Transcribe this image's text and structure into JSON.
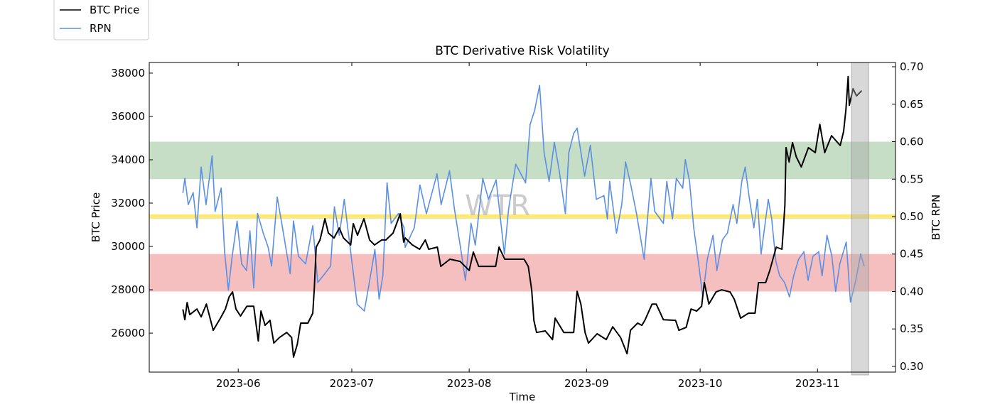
{
  "chart_data": {
    "type": "line",
    "title": "BTC Derivative Risk Volatility",
    "xlabel": "Time",
    "ylabel_left": "BTC Price",
    "ylabel_right": "BTC RPN",
    "x_units": "days since 2023-05-01",
    "xlim": [
      7.5,
      204.6
    ],
    "ylim_left": [
      24200,
      38490
    ],
    "ylim_right": [
      0.2924,
      0.7057
    ],
    "x_ticks": [
      {
        "value": 31,
        "label": "2023-06"
      },
      {
        "value": 61,
        "label": "2023-07"
      },
      {
        "value": 92,
        "label": "2023-08"
      },
      {
        "value": 123,
        "label": "2023-09"
      },
      {
        "value": 153,
        "label": "2023-10"
      },
      {
        "value": 184,
        "label": "2023-11"
      }
    ],
    "y_ticks_left": [
      {
        "value": 26000,
        "label": "26000"
      },
      {
        "value": 28000,
        "label": "28000"
      },
      {
        "value": 30000,
        "label": "30000"
      },
      {
        "value": 32000,
        "label": "32000"
      },
      {
        "value": 34000,
        "label": "34000"
      },
      {
        "value": 36000,
        "label": "36000"
      },
      {
        "value": 38000,
        "label": "38000"
      }
    ],
    "y_ticks_right": [
      {
        "value": 0.3,
        "label": "0.30"
      },
      {
        "value": 0.35,
        "label": "0.35"
      },
      {
        "value": 0.4,
        "label": "0.40"
      },
      {
        "value": 0.45,
        "label": "0.45"
      },
      {
        "value": 0.5,
        "label": "0.50"
      },
      {
        "value": 0.55,
        "label": "0.55"
      },
      {
        "value": 0.6,
        "label": "0.60"
      },
      {
        "value": 0.65,
        "label": "0.65"
      },
      {
        "value": 0.7,
        "label": "0.70"
      }
    ],
    "bands": [
      {
        "name": "high-risk-band",
        "axis": "right",
        "from": 0.55,
        "to": 0.6,
        "color": "#c5dec5"
      },
      {
        "name": "neutral-line-band",
        "axis": "right",
        "from": 0.497,
        "to": 0.503,
        "color": "#fde97a"
      },
      {
        "name": "low-risk-band",
        "axis": "right",
        "from": 0.4,
        "to": 0.45,
        "color": "#f6bfbf"
      }
    ],
    "highlight_x_range": [
      193.0,
      197.5
    ],
    "watermark": "WTR",
    "legend": {
      "placement": "top-left outside",
      "entries": [
        "BTC Price",
        "RPN"
      ]
    },
    "series": [
      {
        "name": "BTC Price",
        "axis": "left",
        "color": "#000000",
        "x": [
          16.4,
          16.9,
          17.5,
          18.2,
          20.1,
          21.2,
          22.6,
          24.4,
          26.3,
          27.6,
          28.6,
          29.5,
          30.4,
          31.6,
          33.3,
          35.1,
          36.3,
          37.0,
          38.1,
          39.4,
          40.4,
          41.9,
          43.8,
          45.1,
          45.6,
          46.6,
          47.5,
          49.4,
          50.7,
          51.1,
          51.6,
          52.6,
          53.9,
          54.8,
          56.3,
          57.7,
          58.8,
          60.7,
          61.4,
          62.5,
          64.2,
          65.7,
          67.0,
          68.9,
          70.0,
          71.9,
          73.8,
          74.7,
          75.1,
          77.0,
          78.9,
          80.4,
          81.3,
          83.6,
          84.5,
          86.9,
          89.6,
          92.0,
          93.1,
          94.5,
          97.1,
          99.0,
          99.9,
          101.4,
          104.6,
          106.5,
          107.6,
          108.5,
          109.1,
          109.8,
          112.1,
          114.0,
          114.7,
          117.0,
          119.6,
          120.5,
          121.5,
          122.6,
          123.5,
          125.8,
          128.2,
          129.9,
          132.0,
          133.7,
          134.6,
          136.5,
          137.6,
          138.4,
          140.3,
          141.4,
          143.3,
          146.5,
          147.4,
          149.3,
          150.6,
          152.1,
          153.4,
          154.1,
          155.3,
          157.2,
          158.7,
          160.9,
          162.0,
          163.7,
          165.8,
          167.5,
          168.4,
          170.3,
          171.4,
          173.1,
          174.6,
          175.0,
          175.4,
          175.7,
          176.5,
          177.4,
          178.4,
          179.7,
          181.6,
          183.4,
          184.6,
          185.9,
          187.7,
          190.0,
          190.9,
          191.5,
          192.1,
          192.4,
          193.4,
          194.3,
          195.6
        ],
        "y": [
          27080,
          26620,
          27410,
          26850,
          27110,
          26750,
          27340,
          26130,
          26690,
          27110,
          27670,
          27900,
          27110,
          26790,
          27240,
          27240,
          25640,
          27020,
          26360,
          26590,
          25540,
          25800,
          26030,
          25800,
          24890,
          25480,
          26460,
          26460,
          26920,
          28100,
          29970,
          30300,
          31280,
          30620,
          30390,
          30850,
          30390,
          30070,
          31050,
          30520,
          31280,
          30300,
          30070,
          30300,
          30300,
          30620,
          31510,
          30200,
          30390,
          30070,
          29870,
          30300,
          29870,
          29970,
          29080,
          29410,
          29310,
          28890,
          29740,
          29080,
          29080,
          29080,
          29970,
          29410,
          29410,
          29410,
          29080,
          28000,
          26590,
          26030,
          26100,
          25700,
          26690,
          26030,
          26030,
          27930,
          27340,
          26030,
          25540,
          25970,
          25700,
          26290,
          25800,
          25050,
          26130,
          26460,
          26360,
          26590,
          27340,
          27340,
          26620,
          26590,
          26130,
          26260,
          27110,
          27020,
          27240,
          28330,
          27340,
          27900,
          28000,
          27900,
          27570,
          26690,
          26920,
          26920,
          28330,
          28330,
          28890,
          29970,
          29870,
          30850,
          31930,
          34560,
          33900,
          34790,
          34130,
          33670,
          34560,
          34330,
          35640,
          34330,
          35110,
          34660,
          35310,
          36300,
          37840,
          36520,
          37280,
          36950,
          37180
        ]
      },
      {
        "name": "RPN",
        "axis": "right",
        "color": "#5b8fe6",
        "x": [
          16.4,
          16.9,
          17.8,
          19.1,
          20.1,
          21.2,
          22.5,
          24.1,
          24.9,
          26.5,
          27.4,
          28.4,
          29.4,
          30.7,
          31.9,
          33.2,
          34.1,
          35.1,
          36.1,
          37.6,
          38.9,
          39.8,
          41.3,
          42.7,
          44.7,
          45.6,
          46.9,
          48.8,
          50.7,
          52.0,
          53.9,
          55.4,
          56.4,
          57.7,
          59.0,
          60.7,
          62.4,
          64.3,
          65.4,
          67.1,
          68.2,
          69.2,
          70.3,
          71.4,
          73.3,
          74.8,
          75.1,
          77.5,
          79.0,
          80.7,
          83.5,
          84.6,
          86.8,
          88.1,
          89.7,
          91.0,
          92.5,
          93.6,
          95.6,
          97.1,
          99.1,
          101.3,
          102.4,
          104.3,
          106.9,
          108.1,
          109.3,
          110.6,
          111.8,
          113.1,
          114.5,
          115.8,
          117.4,
          118.3,
          119.6,
          120.5,
          122.5,
          124.0,
          125.6,
          127.6,
          128.5,
          129.1,
          130.9,
          132.3,
          133.3,
          134.7,
          136.2,
          138.2,
          138.9,
          140.0,
          141.0,
          143.3,
          144.2,
          145.7,
          146.7,
          148.4,
          149.1,
          150.2,
          151.3,
          152.6,
          153.7,
          154.9,
          156.4,
          157.4,
          158.9,
          160.2,
          161.7,
          162.7,
          164.0,
          164.9,
          165.9,
          167.2,
          168.1,
          169.1,
          171.0,
          171.9,
          173.0,
          174.0,
          175.3,
          176.6,
          177.7,
          179.0,
          180.4,
          181.5,
          182.8,
          184.3,
          185.2,
          186.5,
          187.8,
          188.8,
          189.9,
          191.6,
          192.7,
          194.0,
          195.4,
          196.3
        ],
        "y": [
          0.532,
          0.551,
          0.516,
          0.532,
          0.485,
          0.566,
          0.516,
          0.581,
          0.507,
          0.538,
          0.453,
          0.402,
          0.447,
          0.494,
          0.437,
          0.428,
          0.481,
          0.405,
          0.504,
          0.478,
          0.459,
          0.434,
          0.526,
          0.485,
          0.424,
          0.494,
          0.447,
          0.437,
          0.488,
          0.412,
          0.424,
          0.434,
          0.513,
          0.475,
          0.523,
          0.453,
          0.383,
          0.374,
          0.405,
          0.456,
          0.39,
          0.421,
          0.545,
          0.491,
          0.504,
          0.485,
          0.459,
          0.485,
          0.542,
          0.504,
          0.557,
          0.516,
          0.561,
          0.51,
          0.459,
          0.415,
          0.491,
          0.462,
          0.551,
          0.523,
          0.549,
          0.45,
          0.51,
          0.57,
          0.545,
          0.623,
          0.642,
          0.675,
          0.585,
          0.547,
          0.599,
          0.561,
          0.504,
          0.585,
          0.611,
          0.618,
          0.554,
          0.595,
          0.523,
          0.528,
          0.497,
          0.547,
          0.478,
          0.516,
          0.573,
          0.542,
          0.504,
          0.443,
          0.485,
          0.551,
          0.507,
          0.491,
          0.547,
          0.497,
          0.551,
          0.538,
          0.576,
          0.547,
          0.485,
          0.437,
          0.393,
          0.443,
          0.475,
          0.428,
          0.469,
          0.478,
          0.516,
          0.491,
          0.547,
          0.566,
          0.528,
          0.485,
          0.523,
          0.45,
          0.523,
          0.497,
          0.44,
          0.421,
          0.412,
          0.393,
          0.421,
          0.443,
          0.453,
          0.415,
          0.447,
          0.453,
          0.421,
          0.475,
          0.447,
          0.4,
          0.437,
          0.466,
          0.386,
          0.412,
          0.45,
          0.434
        ]
      }
    ]
  }
}
